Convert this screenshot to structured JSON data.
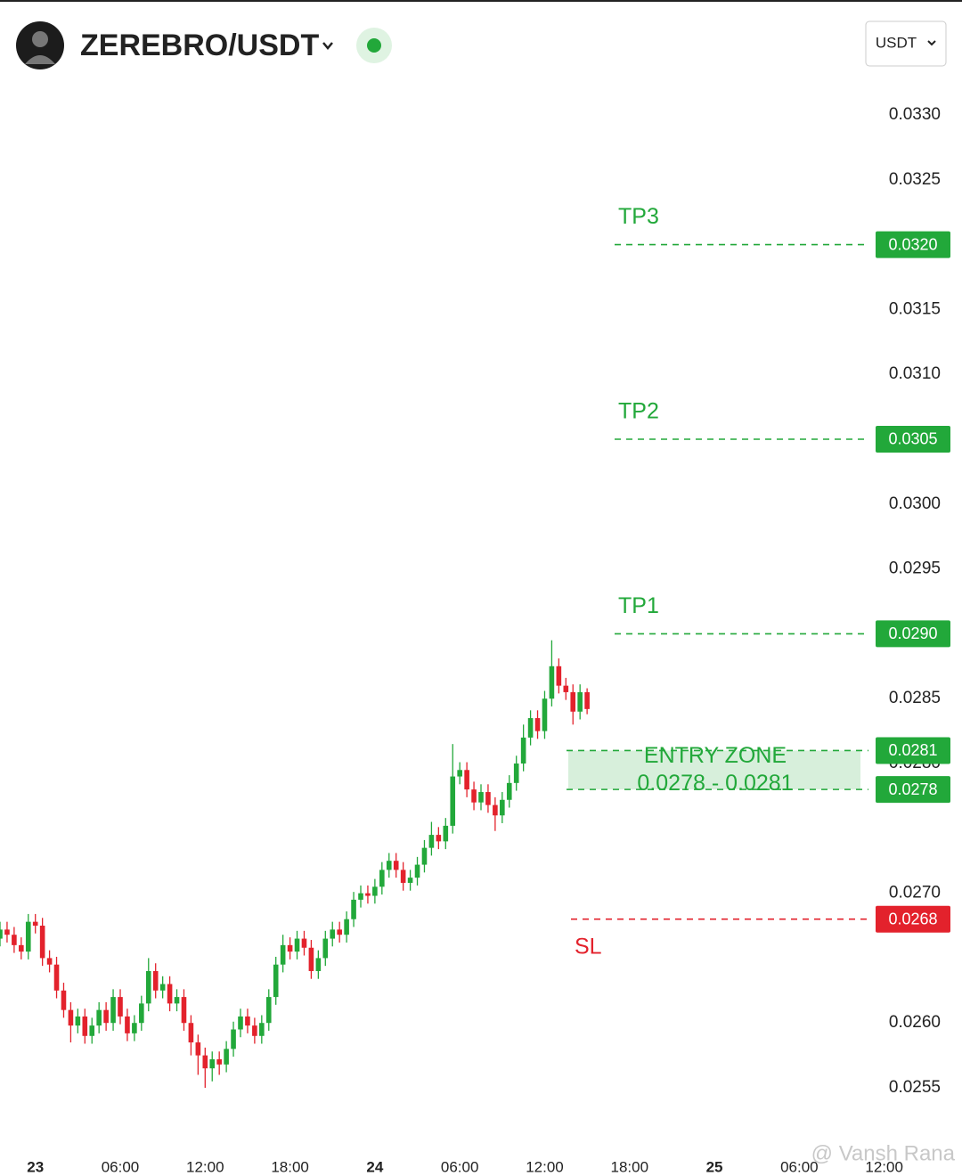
{
  "header": {
    "pair": "ZEREBRO/USDT",
    "currency": "USDT"
  },
  "watermark": "@ Vansh Rana",
  "chart_data": {
    "type": "candlestick",
    "x": [
      -2.5,
      -2,
      -1.5,
      -1,
      -0.5,
      0,
      0.5,
      1,
      1.5,
      2,
      2.5,
      3,
      3.5,
      4,
      4.5,
      5,
      5.5,
      6,
      6.5,
      7,
      7.5,
      8,
      8.5,
      9,
      9.5,
      10,
      10.5,
      11,
      11.5,
      12,
      12.5,
      13,
      13.5,
      14,
      14.5,
      15,
      15.5,
      16,
      16.5,
      17,
      17.5,
      18,
      18.5,
      19,
      19.5,
      20,
      20.5,
      21,
      21.5,
      22,
      22.5,
      23,
      23.5,
      24,
      24.5,
      25,
      25.5,
      26,
      26.5,
      27,
      27.5,
      28,
      28.5,
      29,
      29.5,
      30,
      30.5,
      31,
      31.5,
      32,
      32.5,
      33,
      33.5,
      34,
      34.5,
      35,
      35.5,
      36,
      36.5,
      37,
      37.5,
      38,
      38.5,
      39
    ],
    "open": [
      0.02665,
      0.02672,
      0.02668,
      0.0266,
      0.02655,
      0.02678,
      0.02675,
      0.0265,
      0.02645,
      0.02625,
      0.0261,
      0.02598,
      0.02605,
      0.0259,
      0.02598,
      0.0261,
      0.026,
      0.0262,
      0.02605,
      0.02592,
      0.026,
      0.02615,
      0.0264,
      0.02625,
      0.0263,
      0.02615,
      0.0262,
      0.026,
      0.02585,
      0.02575,
      0.02565,
      0.02572,
      0.02568,
      0.0258,
      0.02595,
      0.02605,
      0.02598,
      0.0259,
      0.026,
      0.0262,
      0.02645,
      0.0266,
      0.02655,
      0.02665,
      0.02658,
      0.0264,
      0.0265,
      0.02665,
      0.02672,
      0.02668,
      0.0268,
      0.02695,
      0.027,
      0.02698,
      0.02705,
      0.02718,
      0.02725,
      0.02718,
      0.02708,
      0.02712,
      0.02722,
      0.02735,
      0.02745,
      0.0274,
      0.02752,
      0.0279,
      0.02795,
      0.0278,
      0.0277,
      0.02778,
      0.02768,
      0.0276,
      0.02772,
      0.02785,
      0.028,
      0.0282,
      0.02835,
      0.02825,
      0.0285,
      0.02875,
      0.0286,
      0.02855,
      0.0284,
      0.02855
    ],
    "high": [
      0.02678,
      0.02678,
      0.02674,
      0.02666,
      0.02684,
      0.02684,
      0.02681,
      0.02656,
      0.02651,
      0.02631,
      0.02616,
      0.02611,
      0.02611,
      0.02604,
      0.02616,
      0.02616,
      0.02626,
      0.02626,
      0.02611,
      0.02606,
      0.02621,
      0.0265,
      0.02646,
      0.02636,
      0.02636,
      0.02626,
      0.02626,
      0.02606,
      0.02591,
      0.02581,
      0.02578,
      0.02578,
      0.02586,
      0.02601,
      0.02611,
      0.02611,
      0.02604,
      0.02606,
      0.02626,
      0.02651,
      0.02668,
      0.02666,
      0.02671,
      0.02671,
      0.02664,
      0.02656,
      0.02671,
      0.02678,
      0.02678,
      0.02686,
      0.02701,
      0.02706,
      0.02706,
      0.02711,
      0.02724,
      0.02731,
      0.02731,
      0.02724,
      0.02718,
      0.02728,
      0.02741,
      0.02755,
      0.02751,
      0.02758,
      0.02815,
      0.02801,
      0.02801,
      0.02786,
      0.02784,
      0.02784,
      0.02774,
      0.02778,
      0.02791,
      0.02806,
      0.0283,
      0.02841,
      0.02841,
      0.02856,
      0.02895,
      0.02881,
      0.02866,
      0.02861,
      0.02861,
      0.02858
    ],
    "low": [
      0.02659,
      0.02662,
      0.02654,
      0.02649,
      0.02649,
      0.02669,
      0.02644,
      0.02639,
      0.02619,
      0.02604,
      0.02585,
      0.02592,
      0.02584,
      0.02584,
      0.02592,
      0.02594,
      0.02594,
      0.02599,
      0.02586,
      0.02586,
      0.02594,
      0.02609,
      0.02619,
      0.02619,
      0.02609,
      0.02609,
      0.02594,
      0.02575,
      0.0256,
      0.0255,
      0.02555,
      0.0256,
      0.02562,
      0.02574,
      0.02589,
      0.02592,
      0.02584,
      0.02584,
      0.02594,
      0.02614,
      0.02639,
      0.02649,
      0.02649,
      0.02652,
      0.02634,
      0.02634,
      0.02644,
      0.02659,
      0.02662,
      0.02662,
      0.02674,
      0.02689,
      0.02692,
      0.02692,
      0.02699,
      0.02712,
      0.02712,
      0.02702,
      0.02702,
      0.02706,
      0.02716,
      0.02729,
      0.02734,
      0.02734,
      0.02746,
      0.02784,
      0.02774,
      0.02764,
      0.02764,
      0.02762,
      0.02748,
      0.02754,
      0.02766,
      0.02779,
      0.02794,
      0.02814,
      0.02819,
      0.02819,
      0.02844,
      0.02854,
      0.02849,
      0.0283,
      0.02834,
      0.02838
    ],
    "close": [
      0.02672,
      0.02668,
      0.0266,
      0.02655,
      0.02678,
      0.02675,
      0.0265,
      0.02645,
      0.02625,
      0.0261,
      0.02598,
      0.02605,
      0.0259,
      0.02598,
      0.0261,
      0.026,
      0.0262,
      0.02605,
      0.02592,
      0.026,
      0.02615,
      0.0264,
      0.02625,
      0.0263,
      0.02615,
      0.0262,
      0.026,
      0.02585,
      0.02575,
      0.02565,
      0.02572,
      0.02568,
      0.0258,
      0.02595,
      0.02605,
      0.02598,
      0.0259,
      0.026,
      0.0262,
      0.02645,
      0.0266,
      0.02655,
      0.02665,
      0.02658,
      0.0264,
      0.0265,
      0.02665,
      0.02672,
      0.02668,
      0.0268,
      0.02695,
      0.027,
      0.02698,
      0.02705,
      0.02718,
      0.02725,
      0.02718,
      0.02708,
      0.02712,
      0.02722,
      0.02735,
      0.02745,
      0.0274,
      0.02752,
      0.0279,
      0.02795,
      0.0278,
      0.0277,
      0.02778,
      0.02768,
      0.0276,
      0.02772,
      0.02785,
      0.028,
      0.0282,
      0.02835,
      0.02825,
      0.0285,
      0.02875,
      0.0286,
      0.02855,
      0.0284,
      0.02855,
      0.02842
    ],
    "up_color": "#22a83a",
    "down_color": "#e3222c",
    "xlim": [
      -2.5,
      65.5
    ],
    "xticks": [
      {
        "value": 0,
        "label": "23"
      },
      {
        "value": 6,
        "label": "06:00"
      },
      {
        "value": 12,
        "label": "12:00"
      },
      {
        "value": 18,
        "label": "18:00"
      },
      {
        "value": 24,
        "label": "24"
      },
      {
        "value": 30,
        "label": "06:00"
      },
      {
        "value": 36,
        "label": "12:00"
      },
      {
        "value": 42,
        "label": "18:00"
      },
      {
        "value": 48,
        "label": "25"
      },
      {
        "value": 54,
        "label": "06:00"
      },
      {
        "value": 60,
        "label": "12:00"
      }
    ],
    "ylim": [
      0.0252,
      0.0333
    ],
    "yticks": [
      {
        "value": 0.033,
        "label": "0.0330"
      },
      {
        "value": 0.0325,
        "label": "0.0325"
      },
      {
        "value": 0.0315,
        "label": "0.0315"
      },
      {
        "value": 0.031,
        "label": "0.0310"
      },
      {
        "value": 0.03,
        "label": "0.0300"
      },
      {
        "value": 0.0295,
        "label": "0.0295"
      },
      {
        "value": 0.0285,
        "label": "0.0285"
      },
      {
        "value": 0.028,
        "label": "0.0280"
      },
      {
        "value": 0.027,
        "label": "0.0270"
      },
      {
        "value": 0.026,
        "label": "0.0260"
      },
      {
        "value": 0.0255,
        "label": "0.0255"
      }
    ],
    "levels": [
      {
        "name": "TP3",
        "value": 0.032,
        "value_label": "0.0320",
        "color": "#22a83a"
      },
      {
        "name": "TP2",
        "value": 0.0305,
        "value_label": "0.0305",
        "color": "#22a83a"
      },
      {
        "name": "TP1",
        "value": 0.029,
        "value_label": "0.0290",
        "color": "#22a83a"
      },
      {
        "name": "SL",
        "value": 0.0268,
        "value_label": "0.0268",
        "color": "#e3222c"
      }
    ],
    "entry_zone": {
      "name": "ENTRY ZONE",
      "range_label": "0.0278 - 0.0281",
      "low": 0.0278,
      "high": 0.0281,
      "low_label": "0.0278",
      "high_label": "0.0281",
      "color": "#22a83a"
    }
  }
}
